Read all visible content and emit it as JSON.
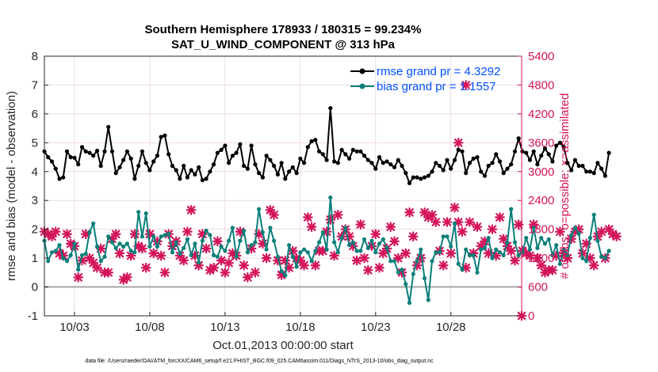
{
  "chart_data": {
    "type": "line",
    "title": "Southern Hemisphere 178933 / 180315 = 99.234%",
    "subtitle": "SAT_U_WIND_COMPONENT @ 313 hPa",
    "xlabel": "Oct.01,2013 00:00:00 start",
    "ylabel": "rmse and bias (model - observation)",
    "ylabel_right": "# of obs: o=possible; ×=assimilated",
    "footer": "data file: /Users/raeder/DAI/ATM_forcXX/CAM6_setup/f.e21.FHIST_BGC.f09_025.CAM6assim.011/Diags_NTrS_2013-10/obs_diag_output.nc",
    "xlim": [
      1,
      32.7
    ],
    "ylim": [
      -1,
      8
    ],
    "ylim_right": [
      0,
      5400
    ],
    "x_ticks": [
      3,
      8,
      13,
      18,
      23,
      28
    ],
    "x_tick_labels": [
      "10/03",
      "10/08",
      "10/13",
      "10/18",
      "10/23",
      "10/28"
    ],
    "y_ticks": [
      -1,
      0,
      1,
      2,
      3,
      4,
      5,
      6,
      7,
      8
    ],
    "y_right_ticks": [
      0,
      600,
      1200,
      1800,
      2400,
      3000,
      3600,
      4200,
      4800,
      5400
    ],
    "x_start": 1.0,
    "x_step": 0.25,
    "grid": true,
    "legend_position": "top-right",
    "series": [
      {
        "name": "rmse grand pr = 4.3292",
        "color": "#000000",
        "marker": "filled-circle",
        "values": [
          4.7,
          4.5,
          4.35,
          4.1,
          3.75,
          3.8,
          4.7,
          4.5,
          4.48,
          4.25,
          4.85,
          4.7,
          4.65,
          4.55,
          4.72,
          4.2,
          4.7,
          5.55,
          4.7,
          3.95,
          4.15,
          4.4,
          4.7,
          4.45,
          3.75,
          4.2,
          4.7,
          4.3,
          4.05,
          4.35,
          4.55,
          5.2,
          5.25,
          4.6,
          4.2,
          4.05,
          3.75,
          4.2,
          3.8,
          4.05,
          3.9,
          4.15,
          3.7,
          3.75,
          4.0,
          4.25,
          4.65,
          4.75,
          4.9,
          4.3,
          4.55,
          4.65,
          4.95,
          4.2,
          4.1,
          4.9,
          4.25,
          3.95,
          3.8,
          4.55,
          4.4,
          4.2,
          3.9,
          4.3,
          3.75,
          4.0,
          4.15,
          3.95,
          4.45,
          4.3,
          4.85,
          5.05,
          5.1,
          4.7,
          4.6,
          4.4,
          6.2,
          4.35,
          4.3,
          4.75,
          4.6,
          4.45,
          4.75,
          4.7,
          4.7,
          4.55,
          4.4,
          4.3,
          4.1,
          4.5,
          4.3,
          4.35,
          4.25,
          4.15,
          4.4,
          4.2,
          3.95,
          3.6,
          3.8,
          3.8,
          3.75,
          3.8,
          3.85,
          4.0,
          4.3,
          4.2,
          4.05,
          4.4,
          4.1,
          4.4,
          4.75,
          4.7,
          3.95,
          4.3,
          4.45,
          4.5,
          4.0,
          3.85,
          4.2,
          4.3,
          4.6,
          4.35,
          3.95,
          4.1,
          4.25,
          4.7,
          5.15,
          4.7,
          4.65,
          4.4,
          4.7,
          4.25,
          4.55,
          4.8,
          4.6,
          4.35,
          4.9,
          5.0,
          4.85,
          4.3,
          4.05,
          4.4,
          4.2,
          4.2,
          4.0,
          4.0,
          3.95,
          4.3,
          4.1,
          3.85,
          4.65
        ],
        "values_note": "plotted every 6 hours starting at x_start"
      },
      {
        "name": "bias grand pr = 1.1557",
        "color": "#0a7f7a",
        "marker": "filled-circle",
        "values": [
          1.6,
          0.9,
          1.2,
          1.25,
          1.45,
          1.0,
          0.9,
          1.1,
          1.5,
          0.6,
          1.1,
          1.15,
          1.9,
          2.2,
          1.4,
          0.9,
          1.05,
          1.75,
          1.55,
          1.35,
          1.5,
          1.4,
          1.5,
          1.25,
          1.2,
          2.6,
          1.75,
          2.55,
          1.4,
          1.75,
          1.4,
          1.75,
          1.8,
          1.85,
          1.2,
          1.55,
          1.15,
          1.35,
          1.65,
          1.1,
          1.5,
          0.85,
          1.6,
          1.95,
          1.8,
          1.1,
          1.05,
          1.4,
          1.25,
          1.6,
          2.05,
          1.05,
          1.6,
          1.95,
          1.2,
          1.45,
          1.55,
          2.7,
          1.9,
          1.3,
          2.05,
          1.6,
          1.05,
          0.55,
          0.4,
          1.45,
          1.05,
          0.7,
          1.2,
          1.3,
          1.2,
          0.9,
          1.25,
          1.55,
          1.9,
          1.3,
          3.1,
          1.55,
          1.2,
          1.7,
          2.05,
          1.45,
          1.55,
          1.25,
          1.25,
          1.65,
          1.35,
          1.6,
          1.2,
          1.5,
          1.65,
          1.35,
          0.9,
          0.9,
          0.5,
          0.6,
          0.1,
          -0.55,
          0.45,
          0.9,
          1.3,
          0.3,
          -0.45,
          0.9,
          1.2,
          1.2,
          1.75,
          1.75,
          1.4,
          2.2,
          0.8,
          0.6,
          1.3,
          1.1,
          1.1,
          0.5,
          1.3,
          1.35,
          1.7,
          1.0,
          1.3,
          1.2,
          1.1,
          1.55,
          2.7,
          1.55,
          1.1,
          1.2,
          1.7,
          1.3,
          2.05,
          1.35,
          1.7,
          1.5,
          1.65,
          1.1,
          1.45,
          0.8,
          1.3,
          1.1,
          1.8,
          2.05,
          1.85,
          1.0,
          0.9,
          1.7,
          2.5,
          1.6,
          1.05,
          1.0,
          1.25
        ]
      }
    ],
    "obs_count": {
      "name": "# of obs assimilated",
      "color": "#d4145a",
      "marker": "x",
      "axis": "right",
      "values": [
        1750,
        1700,
        1650,
        1750,
        1300,
        1250,
        1700,
        1500,
        1450,
        800,
        1150,
        1700,
        1200,
        1100,
        1000,
        1400,
        900,
        900,
        1600,
        1700,
        1300,
        750,
        800,
        1250,
        1700,
        1450,
        1400,
        1000,
        1700,
        1300,
        1550,
        1250,
        900,
        1700,
        1450,
        1550,
        1250,
        1150,
        1750,
        2200,
        1250,
        1050,
        1700,
        1400,
        950,
        1000,
        1550,
        1150,
        900,
        1100,
        1300,
        1250,
        1750,
        1050,
        800,
        1400,
        900,
        1700,
        1500,
        1200,
        2200,
        2100,
        1150,
        850,
        1150,
        1000,
        1350,
        1200,
        1150,
        1050,
        2050,
        1850,
        1050,
        1350,
        1350,
        1750,
        2000,
        1250,
        2100,
        1650,
        1800,
        1650,
        1450,
        1150,
        1900,
        1200,
        950,
        1450,
        1700,
        1000,
        1300,
        1400,
        1850,
        1550,
        1200,
        900,
        1300,
        2150,
        1650,
        1050,
        1200,
        2150,
        2050,
        2100,
        1950,
        1350,
        1050,
        1950,
        1300,
        2250,
        1950,
        1750,
        1000,
        1950,
        1300,
        1850,
        1450,
        1550,
        1300,
        1800,
        1250,
        2050,
        1600,
        1450,
        1350,
        1150,
        1900,
        1350,
        1300,
        1250,
        1900,
        1200,
        1050,
        900,
        950,
        950,
        1250,
        1750,
        1300,
        1200,
        1600,
        1750,
        1800,
        1300,
        1500,
        1200,
        1050,
        1650,
        1750,
        1200,
        1800,
        1700,
        1650
      ],
      "extra_points": [
        {
          "x": 28.5,
          "y": 3600
        },
        {
          "x": 29.0,
          "y": 4800
        },
        {
          "x": 32.7,
          "y": 0
        }
      ]
    }
  },
  "colors": {
    "accent_right": "#d4145a",
    "legend_text": "#0050ff",
    "grid": "#e6c5cf",
    "zero_line": "#a6a6a6"
  }
}
